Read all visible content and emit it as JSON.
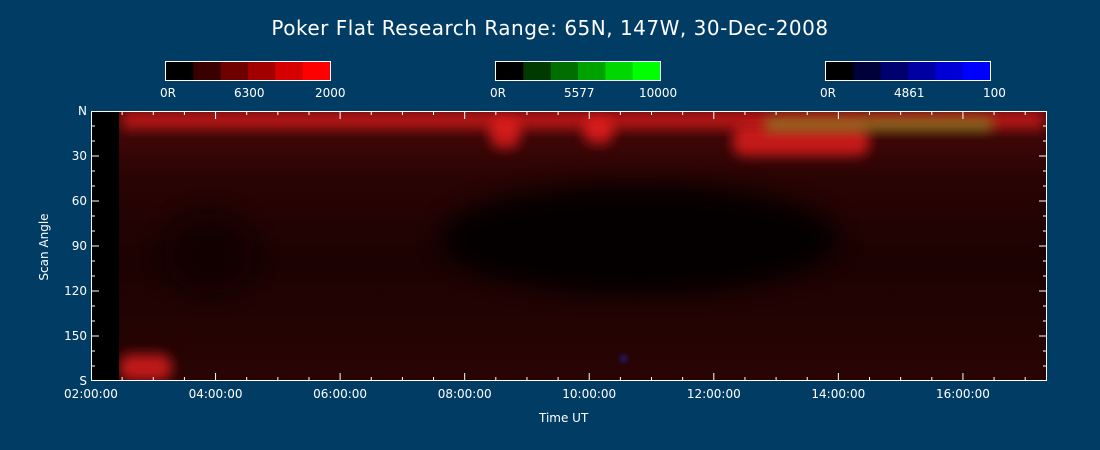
{
  "title": "Poker Flat Research Range: 65N, 147W, 30-Dec-2008",
  "colors": {
    "background": "#003c64",
    "red_channel": "#ff0000",
    "green_channel": "#00ff00",
    "blue_channel": "#0000ff"
  },
  "colorbars": [
    {
      "name": "red",
      "min_label": "0R",
      "wavelength_label": "6300",
      "max_label": "2000",
      "steps": [
        "#000000",
        "#3a0000",
        "#6e0000",
        "#a20000",
        "#d60000",
        "#ff0000"
      ]
    },
    {
      "name": "green",
      "min_label": "0R",
      "wavelength_label": "5577",
      "max_label": "10000",
      "steps": [
        "#000000",
        "#003a00",
        "#006e00",
        "#00a200",
        "#00d600",
        "#00ff00"
      ]
    },
    {
      "name": "blue",
      "min_label": "0R",
      "wavelength_label": "4861",
      "max_label": "100",
      "steps": [
        "#000000",
        "#00003a",
        "#00006e",
        "#0000a2",
        "#0000d6",
        "#0000ff"
      ]
    }
  ],
  "chart_data": {
    "type": "heatmap",
    "title": "Poker Flat Research Range: 65N, 147W, 30-Dec-2008",
    "xlabel": "Time UT",
    "ylabel": "Scan Angle",
    "x_range_hours": [
      2.0,
      17.35
    ],
    "y_range_deg": [
      0,
      180
    ],
    "y_inverted": true,
    "x_ticks": [
      "02:00:00",
      "04:00:00",
      "06:00:00",
      "08:00:00",
      "10:00:00",
      "12:00:00",
      "14:00:00",
      "16:00:00"
    ],
    "x_tick_hours": [
      2,
      4,
      6,
      8,
      10,
      12,
      14,
      16
    ],
    "y_ticks": [
      "N",
      "30",
      "60",
      "90",
      "120",
      "150",
      "S"
    ],
    "y_tick_values": [
      0,
      30,
      60,
      90,
      120,
      150,
      180
    ],
    "data_start_hour": 2.45,
    "features": [
      {
        "channel": "red",
        "time_hours": [
          2.5,
          17.3
        ],
        "scan_angle": [
          0,
          12
        ],
        "intensity": "bright band near north horizon"
      },
      {
        "channel": "red",
        "time_hours": [
          12.3,
          14.5
        ],
        "scan_angle": [
          10,
          30
        ],
        "intensity": "enhanced arc"
      },
      {
        "channel": "red",
        "time_hours": [
          8.4,
          8.9
        ],
        "scan_angle": [
          5,
          25
        ],
        "intensity": "local enhancement"
      },
      {
        "channel": "red",
        "time_hours": [
          9.9,
          10.4
        ],
        "scan_angle": [
          5,
          22
        ],
        "intensity": "local enhancement"
      },
      {
        "channel": "green",
        "time_hours": [
          12.8,
          16.5
        ],
        "scan_angle": [
          4,
          14
        ],
        "intensity": "weak greenish mixing"
      },
      {
        "channel": "red",
        "time_hours": [
          2.45,
          3.3
        ],
        "scan_angle": [
          162,
          180
        ],
        "intensity": "bright patch near south horizon"
      },
      {
        "channel": "blue",
        "time_hours": [
          10.5,
          10.6
        ],
        "scan_angle": [
          163,
          167
        ],
        "intensity": "small blue spot"
      }
    ]
  }
}
